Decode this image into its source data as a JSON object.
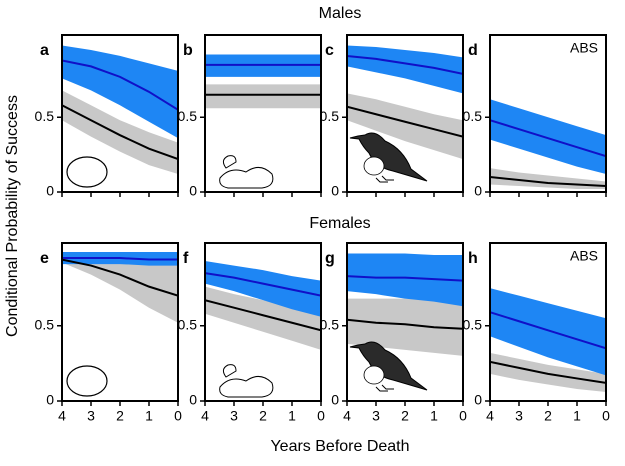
{
  "header": {
    "top": "Males",
    "bottom": "Females"
  },
  "ylabel": "Conditional Probability of Success",
  "xlabel": "Years Before Death",
  "chart_data": [
    {
      "type": "line",
      "label": "a",
      "x": [
        4,
        3,
        2,
        1,
        0
      ],
      "xlim": [
        4,
        0
      ],
      "ylim": [
        0,
        1.05
      ],
      "xticks": [
        4,
        3,
        2,
        1,
        0
      ],
      "yticks": [
        0,
        0.5
      ],
      "series": [
        {
          "color": "#1010c8",
          "band_color": "#1e86f4",
          "values": [
            0.88,
            0.84,
            0.77,
            0.67,
            0.55
          ],
          "upper": [
            0.98,
            0.95,
            0.91,
            0.86,
            0.81
          ],
          "lower": [
            0.76,
            0.68,
            0.58,
            0.47,
            0.36
          ]
        },
        {
          "color": "#000000",
          "band_color": "#c8c8c8",
          "values": [
            0.58,
            0.48,
            0.38,
            0.29,
            0.22
          ],
          "upper": [
            0.68,
            0.58,
            0.48,
            0.4,
            0.33
          ],
          "lower": [
            0.48,
            0.37,
            0.27,
            0.18,
            0.12
          ]
        }
      ]
    },
    {
      "type": "line",
      "label": "b",
      "x": [
        4,
        3,
        2,
        1,
        0
      ],
      "xlim": [
        4,
        0
      ],
      "ylim": [
        0,
        1.05
      ],
      "xticks": [
        4,
        3,
        2,
        1,
        0
      ],
      "yticks": [
        0,
        0.5
      ],
      "series": [
        {
          "color": "#1010c8",
          "band_color": "#1e86f4",
          "values": [
            0.85,
            0.85,
            0.85,
            0.85,
            0.85
          ],
          "upper": [
            0.92,
            0.92,
            0.92,
            0.92,
            0.92
          ],
          "lower": [
            0.77,
            0.77,
            0.77,
            0.77,
            0.77
          ]
        },
        {
          "color": "#000000",
          "band_color": "#c8c8c8",
          "values": [
            0.65,
            0.65,
            0.65,
            0.65,
            0.65
          ],
          "upper": [
            0.72,
            0.72,
            0.72,
            0.72,
            0.72
          ],
          "lower": [
            0.56,
            0.56,
            0.56,
            0.56,
            0.56
          ]
        }
      ]
    },
    {
      "type": "line",
      "label": "c",
      "x": [
        4,
        3,
        2,
        1,
        0
      ],
      "xlim": [
        4,
        0
      ],
      "ylim": [
        0,
        1.05
      ],
      "xticks": [
        4,
        3,
        2,
        1,
        0
      ],
      "yticks": [
        0,
        0.5
      ],
      "series": [
        {
          "color": "#1010c8",
          "band_color": "#1e86f4",
          "values": [
            0.91,
            0.89,
            0.86,
            0.83,
            0.79
          ],
          "upper": [
            0.98,
            0.97,
            0.95,
            0.93,
            0.9
          ],
          "lower": [
            0.84,
            0.8,
            0.76,
            0.71,
            0.66
          ]
        },
        {
          "color": "#000000",
          "band_color": "#c8c8c8",
          "values": [
            0.57,
            0.52,
            0.47,
            0.42,
            0.37
          ],
          "upper": [
            0.66,
            0.62,
            0.57,
            0.52,
            0.48
          ],
          "lower": [
            0.48,
            0.41,
            0.34,
            0.28,
            0.22
          ]
        }
      ]
    },
    {
      "type": "line",
      "label": "d",
      "annotation": "ABS",
      "x": [
        4,
        3,
        2,
        1,
        0
      ],
      "xlim": [
        4,
        0
      ],
      "ylim": [
        0,
        1.05
      ],
      "xticks": [
        4,
        3,
        2,
        1,
        0
      ],
      "yticks": [
        0,
        0.5
      ],
      "series": [
        {
          "color": "#1010c8",
          "band_color": "#1e86f4",
          "values": [
            0.48,
            0.42,
            0.36,
            0.3,
            0.24
          ],
          "upper": [
            0.62,
            0.56,
            0.5,
            0.44,
            0.38
          ],
          "lower": [
            0.35,
            0.29,
            0.23,
            0.17,
            0.12
          ]
        },
        {
          "color": "#000000",
          "band_color": "#c8c8c8",
          "values": [
            0.1,
            0.08,
            0.06,
            0.05,
            0.04
          ],
          "upper": [
            0.16,
            0.13,
            0.11,
            0.09,
            0.07
          ],
          "lower": [
            0.05,
            0.04,
            0.03,
            0.02,
            0.02
          ]
        }
      ]
    },
    {
      "type": "line",
      "label": "e",
      "x": [
        4,
        3,
        2,
        1,
        0
      ],
      "xlim": [
        4,
        0
      ],
      "ylim": [
        0,
        1.05
      ],
      "xticks": [
        4,
        3,
        2,
        1,
        0
      ],
      "yticks": [
        0,
        0.5
      ],
      "series": [
        {
          "color": "#1010c8",
          "band_color": "#1e86f4",
          "values": [
            0.95,
            0.95,
            0.95,
            0.94,
            0.94
          ],
          "upper": [
            0.99,
            0.99,
            0.99,
            0.99,
            0.99
          ],
          "lower": [
            0.91,
            0.91,
            0.91,
            0.9,
            0.9
          ]
        },
        {
          "color": "#000000",
          "band_color": "#c8c8c8",
          "values": [
            0.94,
            0.9,
            0.84,
            0.76,
            0.7
          ],
          "upper": [
            0.98,
            0.96,
            0.94,
            0.92,
            0.9
          ],
          "lower": [
            0.92,
            0.84,
            0.74,
            0.62,
            0.52
          ]
        }
      ]
    },
    {
      "type": "line",
      "label": "f",
      "x": [
        4,
        3,
        2,
        1,
        0
      ],
      "xlim": [
        4,
        0
      ],
      "ylim": [
        0,
        1.05
      ],
      "xticks": [
        4,
        3,
        2,
        1,
        0
      ],
      "yticks": [
        0,
        0.5
      ],
      "series": [
        {
          "color": "#1010c8",
          "band_color": "#1e86f4",
          "values": [
            0.85,
            0.82,
            0.78,
            0.74,
            0.7
          ],
          "upper": [
            0.93,
            0.9,
            0.87,
            0.83,
            0.8
          ],
          "lower": [
            0.78,
            0.73,
            0.67,
            0.61,
            0.56
          ]
        },
        {
          "color": "#000000",
          "band_color": "#c8c8c8",
          "values": [
            0.67,
            0.62,
            0.57,
            0.52,
            0.47
          ],
          "upper": [
            0.76,
            0.71,
            0.67,
            0.62,
            0.58
          ],
          "lower": [
            0.58,
            0.52,
            0.46,
            0.4,
            0.34
          ]
        }
      ]
    },
    {
      "type": "line",
      "label": "g",
      "x": [
        4,
        3,
        2,
        1,
        0
      ],
      "xlim": [
        4,
        0
      ],
      "ylim": [
        0,
        1.05
      ],
      "xticks": [
        4,
        3,
        2,
        1,
        0
      ],
      "yticks": [
        0,
        0.5
      ],
      "series": [
        {
          "color": "#1010c8",
          "band_color": "#1e86f4",
          "values": [
            0.83,
            0.82,
            0.82,
            0.81,
            0.8
          ],
          "upper": [
            0.98,
            0.98,
            0.98,
            0.97,
            0.97
          ],
          "lower": [
            0.73,
            0.71,
            0.68,
            0.66,
            0.63
          ]
        },
        {
          "color": "#000000",
          "band_color": "#c8c8c8",
          "values": [
            0.54,
            0.52,
            0.51,
            0.49,
            0.48
          ],
          "upper": [
            0.68,
            0.68,
            0.68,
            0.68,
            0.68
          ],
          "lower": [
            0.38,
            0.36,
            0.34,
            0.32,
            0.3
          ]
        }
      ]
    },
    {
      "type": "line",
      "label": "h",
      "annotation": "ABS",
      "x": [
        4,
        3,
        2,
        1,
        0
      ],
      "xlim": [
        4,
        0
      ],
      "ylim": [
        0,
        1.05
      ],
      "xticks": [
        4,
        3,
        2,
        1,
        0
      ],
      "yticks": [
        0,
        0.5
      ],
      "series": [
        {
          "color": "#1010c8",
          "band_color": "#1e86f4",
          "values": [
            0.59,
            0.53,
            0.47,
            0.41,
            0.35
          ],
          "upper": [
            0.75,
            0.7,
            0.65,
            0.6,
            0.55
          ],
          "lower": [
            0.43,
            0.36,
            0.29,
            0.23,
            0.17
          ]
        },
        {
          "color": "#000000",
          "band_color": "#c8c8c8",
          "values": [
            0.26,
            0.22,
            0.18,
            0.15,
            0.12
          ],
          "upper": [
            0.32,
            0.28,
            0.24,
            0.21,
            0.18
          ],
          "lower": [
            0.18,
            0.14,
            0.11,
            0.08,
            0.06
          ]
        }
      ]
    }
  ]
}
